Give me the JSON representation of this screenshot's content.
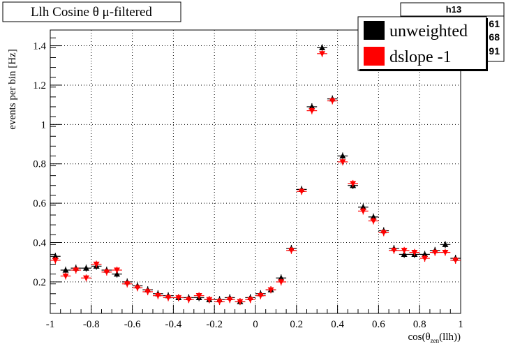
{
  "chart_data": {
    "type": "scatter",
    "title": "Llh Cosine θ μ-filtered",
    "stats_box": {
      "name": "h13",
      "visible_fragments": [
        "61",
        "68",
        "91"
      ]
    },
    "xlabel": "cos(θzen(llh))",
    "xlabel_parts": {
      "base": "cos(θ",
      "sub": "zen",
      "tail": "(llh))"
    },
    "ylabel": "events per bin [Hz]",
    "xlim": [
      -1,
      1
    ],
    "ylim": [
      0.04,
      1.48
    ],
    "x_ticks": [
      "-1",
      "-0.8",
      "-0.6",
      "-0.4",
      "-0.2",
      "0",
      "0.2",
      "0.4",
      "0.6",
      "0.8",
      "1"
    ],
    "x_tick_values": [
      -1,
      -0.8,
      -0.6,
      -0.4,
      -0.2,
      0,
      0.2,
      0.4,
      0.6,
      0.8,
      1
    ],
    "y_ticks": [
      "0.2",
      "0.4",
      "0.6",
      "0.8",
      "1",
      "1.2",
      "1.4"
    ],
    "y_tick_values": [
      0.2,
      0.4,
      0.6,
      0.8,
      1.0,
      1.2,
      1.4
    ],
    "grid": true,
    "legend_position": "top-right",
    "x": [
      -0.975,
      -0.925,
      -0.875,
      -0.825,
      -0.775,
      -0.725,
      -0.675,
      -0.625,
      -0.575,
      -0.525,
      -0.475,
      -0.425,
      -0.375,
      -0.325,
      -0.275,
      -0.225,
      -0.175,
      -0.125,
      -0.075,
      -0.025,
      0.025,
      0.075,
      0.125,
      0.175,
      0.225,
      0.275,
      0.325,
      0.375,
      0.425,
      0.475,
      0.525,
      0.575,
      0.625,
      0.675,
      0.725,
      0.775,
      0.825,
      0.875,
      0.925,
      0.975
    ],
    "series": [
      {
        "name": "unweighted",
        "color": "#000000",
        "marker": "triangle-up",
        "values": [
          0.33,
          0.26,
          0.27,
          0.27,
          0.28,
          0.26,
          0.24,
          0.2,
          0.18,
          0.16,
          0.14,
          0.13,
          0.12,
          0.12,
          0.12,
          0.11,
          0.11,
          0.12,
          0.1,
          0.12,
          0.14,
          0.16,
          0.22,
          0.37,
          0.67,
          1.09,
          1.39,
          1.13,
          0.84,
          0.69,
          0.58,
          0.53,
          0.46,
          0.37,
          0.34,
          0.34,
          0.34,
          0.36,
          0.39,
          0.32
        ]
      },
      {
        "name": "dslope -1",
        "color": "#ff0000",
        "marker": "triangle-down",
        "values": [
          0.31,
          0.23,
          0.26,
          0.22,
          0.29,
          0.25,
          0.26,
          0.19,
          0.17,
          0.15,
          0.13,
          0.12,
          0.12,
          0.11,
          0.13,
          0.11,
          0.1,
          0.11,
          0.1,
          0.11,
          0.13,
          0.16,
          0.2,
          0.36,
          0.66,
          1.07,
          1.36,
          1.12,
          0.81,
          0.7,
          0.56,
          0.51,
          0.45,
          0.36,
          0.36,
          0.35,
          0.32,
          0.35,
          0.35,
          0.31
        ]
      }
    ]
  }
}
